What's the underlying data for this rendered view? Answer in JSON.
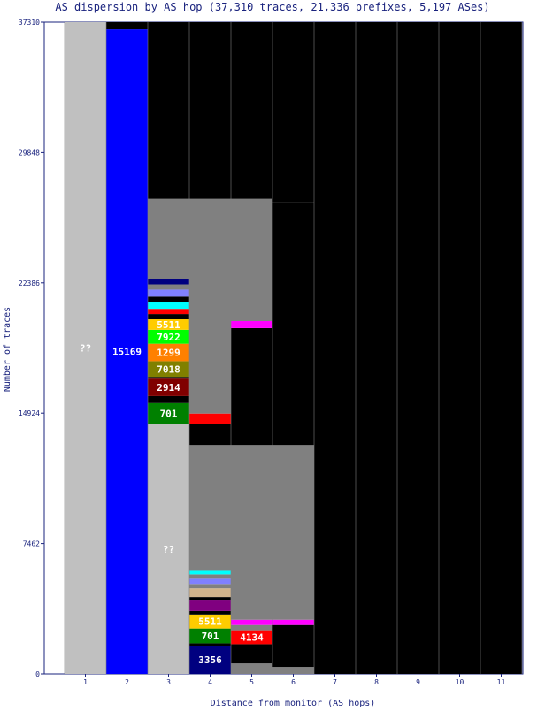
{
  "chart_data": {
    "type": "bar",
    "title": "AS dispersion by AS hop (37,310 traces, 21,336 prefixes, 5,197 ASes)",
    "xlabel": "Distance from monitor (AS hops)",
    "ylabel": "Number of traces",
    "ylim": [
      0,
      37310
    ],
    "yticks": [
      "0",
      "7462",
      "14924",
      "22386",
      "29848",
      "37310"
    ],
    "categories": [
      "1",
      "2",
      "3",
      "4",
      "5",
      "6",
      "7",
      "8",
      "9",
      "10",
      "11"
    ],
    "grid": false,
    "legend": "none",
    "colors": {
      "unknown": "#c0c0c0",
      "no_data": "#000000",
      "other_as": "#808080",
      "as15169": "#0000ff",
      "as5511": "#ffcc00",
      "as7922": "#00ff00",
      "as1299": "#ff8000",
      "as7018": "#808000",
      "as2914": "#800000",
      "as701": "#008000",
      "as4134": "#ff0000",
      "as3356": "#000080"
    },
    "stacks": [
      {
        "hop": "1",
        "segments": [
          {
            "label": "??",
            "from": 0,
            "to": 37310,
            "color": "#c0c0c0",
            "show_label": true
          }
        ]
      },
      {
        "hop": "2",
        "segments": [
          {
            "label": "15169",
            "from": 0,
            "to": 36900,
            "color": "#0000ff",
            "show_label": true
          },
          {
            "label": "",
            "from": 36900,
            "to": 37310,
            "color": "#000000",
            "show_label": false
          }
        ]
      },
      {
        "hop": "3",
        "segments": [
          {
            "label": "??",
            "from": 0,
            "to": 14300,
            "color": "#c0c0c0",
            "show_label": true
          },
          {
            "label": "701",
            "from": 14300,
            "to": 15500,
            "color": "#008000",
            "show_label": true
          },
          {
            "label": "",
            "from": 15500,
            "to": 15900,
            "color": "#000000",
            "show_label": false
          },
          {
            "label": "2914",
            "from": 15900,
            "to": 16900,
            "color": "#800000",
            "show_label": true
          },
          {
            "label": "",
            "from": 16900,
            "to": 17000,
            "color": "#000000",
            "show_label": false
          },
          {
            "label": "7018",
            "from": 17000,
            "to": 17900,
            "color": "#808000",
            "show_label": true
          },
          {
            "label": "1299",
            "from": 17900,
            "to": 18900,
            "color": "#ff8000",
            "show_label": true
          },
          {
            "label": "7922",
            "from": 18900,
            "to": 19700,
            "color": "#00ff00",
            "show_label": true
          },
          {
            "label": "5511",
            "from": 19700,
            "to": 20300,
            "color": "#ffcc00",
            "show_label": true
          },
          {
            "label": "",
            "from": 20300,
            "to": 20600,
            "color": "#000000",
            "show_label": false
          },
          {
            "label": "",
            "from": 20600,
            "to": 20900,
            "color": "#ff0000",
            "show_label": false
          },
          {
            "label": "",
            "from": 20900,
            "to": 21300,
            "color": "#00ffff",
            "show_label": false
          },
          {
            "label": "",
            "from": 21300,
            "to": 21600,
            "color": "#000000",
            "show_label": false
          },
          {
            "label": "",
            "from": 21600,
            "to": 22000,
            "color": "#8080ff",
            "show_label": false
          },
          {
            "label": "",
            "from": 22000,
            "to": 22300,
            "color": "#808080",
            "show_label": false
          },
          {
            "label": "",
            "from": 22300,
            "to": 22600,
            "color": "#000080",
            "show_label": false
          },
          {
            "label": "",
            "from": 22600,
            "to": 27200,
            "color": "#808080",
            "show_label": false
          },
          {
            "label": "",
            "from": 27200,
            "to": 37310,
            "color": "#000000",
            "show_label": false
          }
        ]
      },
      {
        "hop": "4",
        "segments": [
          {
            "label": "3356",
            "from": 0,
            "to": 1600,
            "color": "#000080",
            "show_label": true
          },
          {
            "label": "",
            "from": 1600,
            "to": 1750,
            "color": "#000000",
            "show_label": false
          },
          {
            "label": "701",
            "from": 1750,
            "to": 2600,
            "color": "#008000",
            "show_label": true
          },
          {
            "label": "5511",
            "from": 2600,
            "to": 3400,
            "color": "#ffcc00",
            "show_label": true
          },
          {
            "label": "",
            "from": 3400,
            "to": 3600,
            "color": "#000000",
            "show_label": false
          },
          {
            "label": "",
            "from": 3600,
            "to": 4200,
            "color": "#800080",
            "show_label": false
          },
          {
            "label": "",
            "from": 4200,
            "to": 4400,
            "color": "#000000",
            "show_label": false
          },
          {
            "label": "",
            "from": 4400,
            "to": 4900,
            "color": "#d2b48c",
            "show_label": false
          },
          {
            "label": "",
            "from": 4900,
            "to": 5150,
            "color": "#808080",
            "show_label": false
          },
          {
            "label": "",
            "from": 5150,
            "to": 5450,
            "color": "#8080ff",
            "show_label": false
          },
          {
            "label": "",
            "from": 5450,
            "to": 5700,
            "color": "#808080",
            "show_label": false
          },
          {
            "label": "",
            "from": 5700,
            "to": 5900,
            "color": "#00ffff",
            "show_label": false
          },
          {
            "label": "",
            "from": 5900,
            "to": 13100,
            "color": "#808080",
            "show_label": false
          },
          {
            "label": "",
            "from": 13100,
            "to": 14300,
            "color": "#000000",
            "show_label": false
          },
          {
            "label": "",
            "from": 14300,
            "to": 14900,
            "color": "#ff0000",
            "show_label": false
          },
          {
            "label": "",
            "from": 14900,
            "to": 27200,
            "color": "#808080",
            "show_label": false
          },
          {
            "label": "",
            "from": 27200,
            "to": 37310,
            "color": "#000000",
            "show_label": false
          }
        ]
      },
      {
        "hop": "5",
        "segments": [
          {
            "label": "",
            "from": 0,
            "to": 600,
            "color": "#808080",
            "show_label": false
          },
          {
            "label": "",
            "from": 600,
            "to": 1700,
            "color": "#000000",
            "show_label": false
          },
          {
            "label": "4134",
            "from": 1700,
            "to": 2500,
            "color": "#ff0000",
            "show_label": true
          },
          {
            "label": "",
            "from": 2500,
            "to": 2800,
            "color": "#808080",
            "show_label": false
          },
          {
            "label": "",
            "from": 2800,
            "to": 3100,
            "color": "#ff00ff",
            "show_label": false
          },
          {
            "label": "",
            "from": 3100,
            "to": 13100,
            "color": "#808080",
            "show_label": false
          },
          {
            "label": "",
            "from": 13100,
            "to": 19800,
            "color": "#000000",
            "show_label": false
          },
          {
            "label": "",
            "from": 19800,
            "to": 20200,
            "color": "#ff00ff",
            "show_label": false
          },
          {
            "label": "",
            "from": 20200,
            "to": 27200,
            "color": "#808080",
            "show_label": false
          },
          {
            "label": "",
            "from": 27200,
            "to": 37310,
            "color": "#000000",
            "show_label": false
          }
        ]
      },
      {
        "hop": "6",
        "segments": [
          {
            "label": "",
            "from": 0,
            "to": 400,
            "color": "#808080",
            "show_label": false
          },
          {
            "label": "",
            "from": 400,
            "to": 2800,
            "color": "#000000",
            "show_label": false
          },
          {
            "label": "",
            "from": 2800,
            "to": 3100,
            "color": "#ff00ff",
            "show_label": false
          },
          {
            "label": "",
            "from": 3100,
            "to": 13100,
            "color": "#808080",
            "show_label": false
          },
          {
            "label": "",
            "from": 13100,
            "to": 27000,
            "color": "#000000",
            "show_label": false
          },
          {
            "label": "",
            "from": 27000,
            "to": 37310,
            "color": "#000000",
            "show_label": false
          }
        ]
      },
      {
        "hop": "7",
        "segments": [
          {
            "label": "",
            "from": 0,
            "to": 37310,
            "color": "#000000",
            "show_label": false
          }
        ]
      },
      {
        "hop": "8",
        "segments": [
          {
            "label": "",
            "from": 0,
            "to": 37310,
            "color": "#000000",
            "show_label": false
          }
        ]
      },
      {
        "hop": "9",
        "segments": [
          {
            "label": "",
            "from": 0,
            "to": 37310,
            "color": "#000000",
            "show_label": false
          }
        ]
      },
      {
        "hop": "10",
        "segments": [
          {
            "label": "",
            "from": 0,
            "to": 37310,
            "color": "#000000",
            "show_label": false
          }
        ]
      },
      {
        "hop": "11",
        "segments": [
          {
            "label": "",
            "from": 0,
            "to": 37310,
            "color": "#000000",
            "show_label": false
          }
        ]
      }
    ]
  }
}
